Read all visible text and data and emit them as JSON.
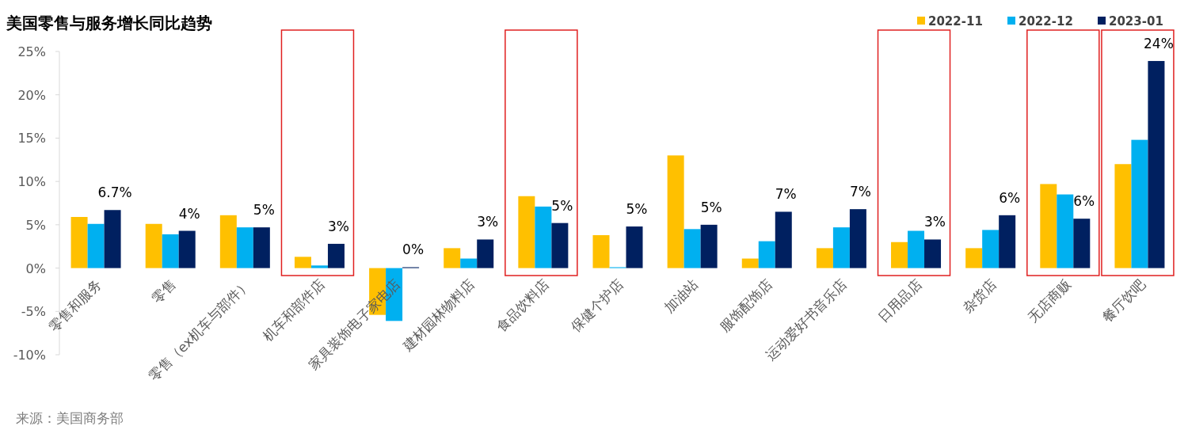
{
  "chart_data": {
    "type": "bar",
    "title": "美国零售与服务增长同比趋势",
    "categories": [
      "零售和服务",
      "零售",
      "零售（ex机车与部件）",
      "机车和部件店",
      "家具装饰电子家电店",
      "建材园林物料店",
      "食品饮料店",
      "保健个护店",
      "加油站",
      "服饰配饰店",
      "运动爱好书音乐店",
      "日用品店",
      "杂货店",
      "无店商贩",
      "餐厅饮吧"
    ],
    "series": [
      {
        "name": "2022-11",
        "color": "#ffc000",
        "values": [
          5.9,
          5.1,
          6.1,
          1.3,
          -5.4,
          2.3,
          8.3,
          3.8,
          13.0,
          1.1,
          2.3,
          3.0,
          2.3,
          9.7,
          12.0
        ]
      },
      {
        "name": "2022-12",
        "color": "#00b0f0",
        "values": [
          5.1,
          3.9,
          4.7,
          0.3,
          -6.1,
          1.1,
          7.1,
          0.1,
          4.5,
          3.1,
          4.7,
          4.3,
          4.4,
          8.5,
          14.8
        ]
      },
      {
        "name": "2023-01",
        "color": "#002060",
        "values": [
          6.7,
          4.3,
          4.7,
          2.8,
          0.1,
          3.3,
          5.2,
          4.8,
          5.0,
          6.5,
          6.8,
          3.3,
          6.1,
          5.7,
          23.9
        ],
        "value_labels": [
          "6.7%",
          "4%",
          "5%",
          "3%",
          "0%",
          "3%",
          "5%",
          "5%",
          "5%",
          "7%",
          "7%",
          "3%",
          "6%",
          "6%",
          "24%"
        ]
      }
    ],
    "ylim": [
      -10,
      25
    ],
    "yticks": [
      {
        "value": -10,
        "label": "-10%"
      },
      {
        "value": -5,
        "label": "-5%"
      },
      {
        "value": 0,
        "label": "0%"
      },
      {
        "value": 5,
        "label": "5%"
      },
      {
        "value": 10,
        "label": "10%"
      },
      {
        "value": 15,
        "label": "15%"
      },
      {
        "value": 20,
        "label": "20%"
      },
      {
        "value": 25,
        "label": "25%"
      }
    ],
    "legend": "top right",
    "annotations": [
      "来源：美国商务部"
    ]
  }
}
